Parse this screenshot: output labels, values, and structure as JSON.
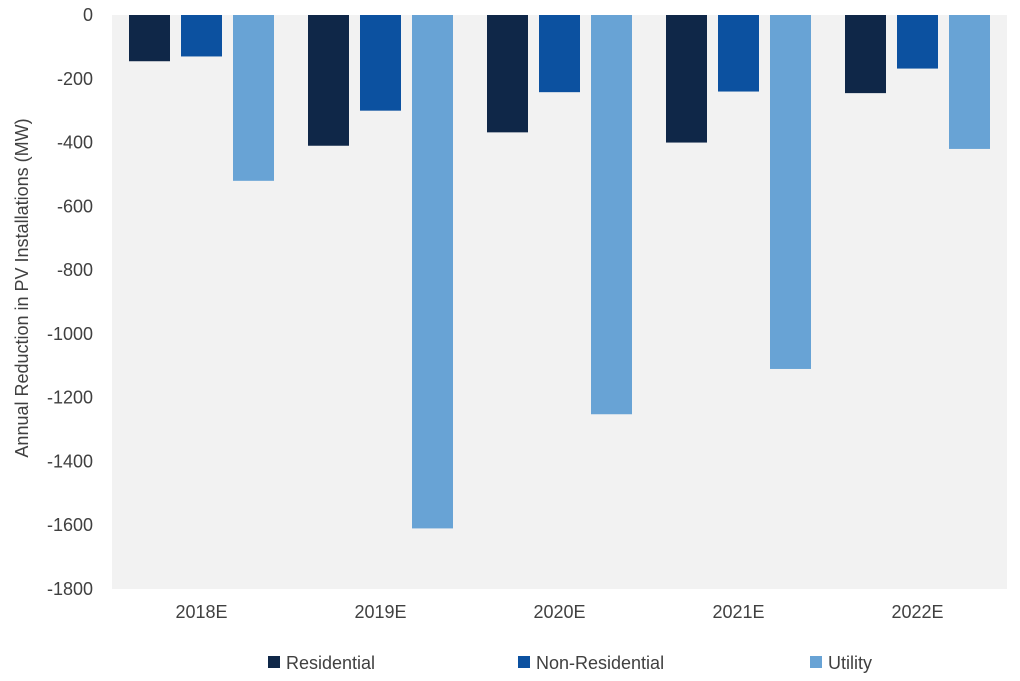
{
  "chart_data": {
    "type": "bar",
    "ylabel": "Annual Reduction in PV Installations (MW)",
    "xlabel": "",
    "title": "",
    "ylim": [
      -1800,
      0
    ],
    "yticks": [
      0,
      -200,
      -400,
      -600,
      -800,
      -1000,
      -1200,
      -1400,
      -1600,
      -1800
    ],
    "categories": [
      "2018E",
      "2019E",
      "2020E",
      "2021E",
      "2022E"
    ],
    "series": [
      {
        "name": "Residential",
        "color": "#0f2748",
        "values": [
          -145,
          -410,
          -368,
          -400,
          -245
        ]
      },
      {
        "name": "Non-Residential",
        "color": "#0c51a0",
        "values": [
          -130,
          -300,
          -242,
          -240,
          -168
        ]
      },
      {
        "name": "Utility",
        "color": "#68a3d5",
        "values": [
          -520,
          -1610,
          -1252,
          -1110,
          -420
        ]
      }
    ],
    "legend": "bottom",
    "grid": false,
    "plot_background": "#f2f2f2"
  }
}
